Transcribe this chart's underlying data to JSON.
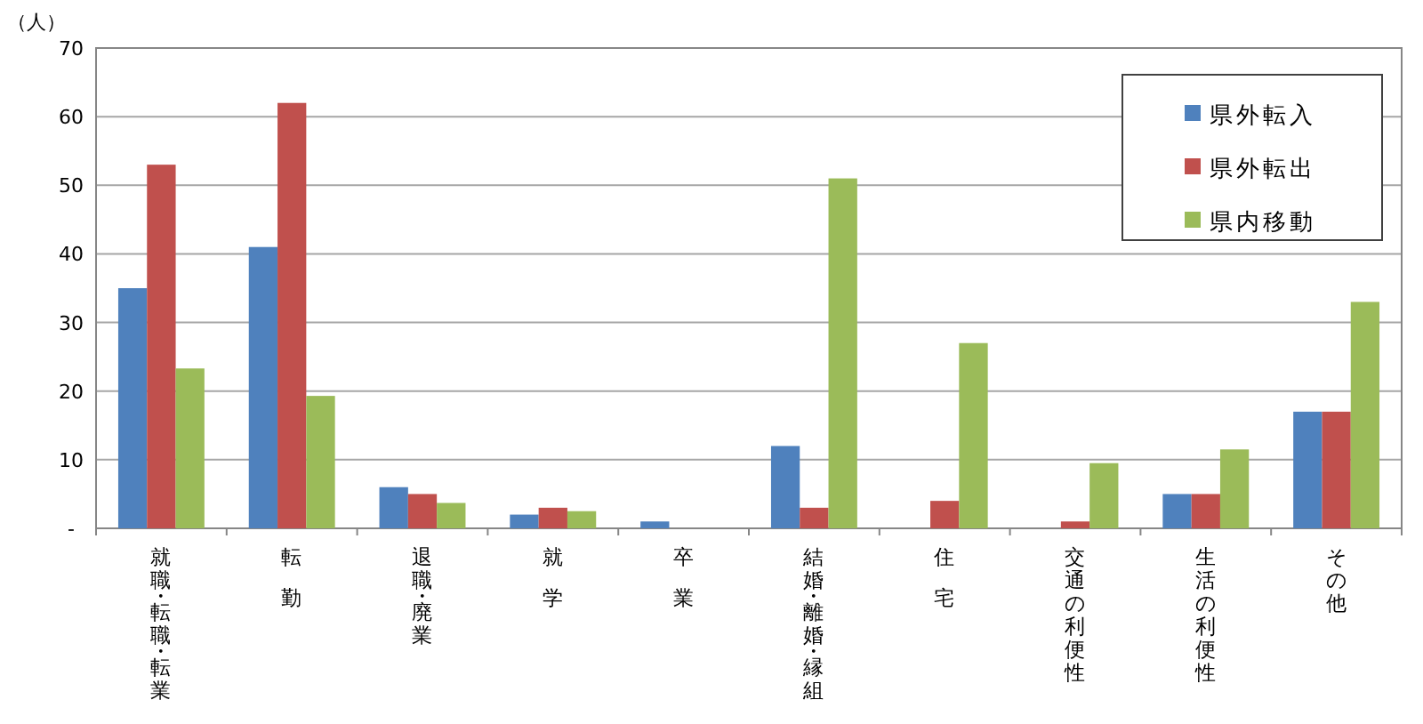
{
  "chart_data": {
    "type": "bar",
    "ylabel": "（人）",
    "categories": [
      "就職・転職・転業",
      "転勤",
      "退職・廃業",
      "就学",
      "卒業",
      "結婚・離婚・縁組",
      "住宅",
      "交通の利便性",
      "生活の利便性",
      "その他"
    ],
    "series": [
      {
        "name": "県外転入",
        "color": "#4f81bd",
        "values": [
          35,
          41,
          6,
          2,
          1,
          12,
          0,
          0,
          5,
          17
        ]
      },
      {
        "name": "県外転出",
        "color": "#c0504d",
        "values": [
          53,
          62,
          5,
          3,
          0,
          3,
          4,
          1,
          5,
          17
        ]
      },
      {
        "name": "県内移動",
        "color": "#9bbb59",
        "values": [
          23.3,
          19.3,
          3.7,
          2.5,
          0,
          51,
          27,
          9.5,
          11.5,
          33
        ]
      }
    ],
    "ylim": [
      0,
      70
    ],
    "yticks": [
      {
        "value": 0,
        "label": "-"
      },
      10,
      20,
      30,
      40,
      50,
      60,
      70
    ],
    "grid": "y",
    "legend": "top right"
  }
}
